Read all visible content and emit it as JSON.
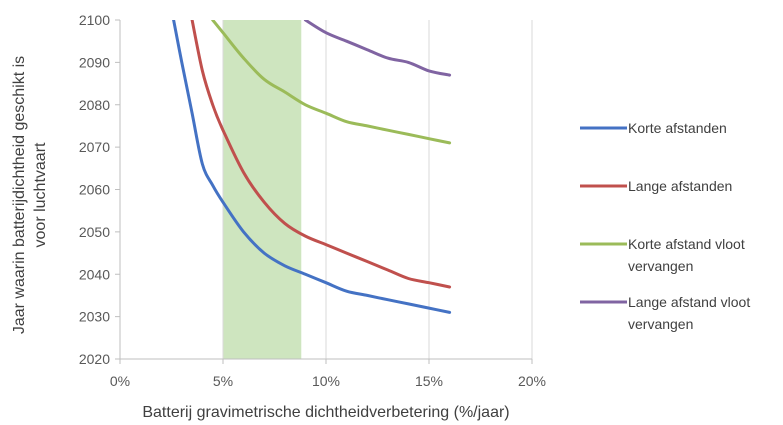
{
  "chart_data": {
    "type": "line",
    "title": "",
    "xlabel": "Batterij gravimetrische dichtheidverbetering (%/jaar)",
    "ylabel_lines": [
      "Jaar waarin batterijdichtheid geschikt is",
      "voor luchtvaart"
    ],
    "xlim": [
      0,
      20
    ],
    "ylim": [
      2020,
      2100
    ],
    "x_ticks": [
      0,
      5,
      10,
      15,
      20
    ],
    "x_tick_labels": [
      "0%",
      "5%",
      "10%",
      "15%",
      "20%"
    ],
    "y_ticks": [
      2020,
      2030,
      2040,
      2050,
      2060,
      2070,
      2080,
      2090,
      2100
    ],
    "y_tick_labels": [
      "2020",
      "2030",
      "2040",
      "2050",
      "2060",
      "2070",
      "2080",
      "2090",
      "2100"
    ],
    "grid": "vertical",
    "shaded_band": {
      "x_from": 5,
      "x_to": 8.8,
      "color": "#c5e0b4"
    },
    "legend_position": "right",
    "series": [
      {
        "name_lines": [
          "Korte afstanden"
        ],
        "color": "#4472c4",
        "x": [
          2.6,
          3.0,
          3.5,
          4.0,
          4.5,
          5.0,
          6.0,
          7.0,
          8.0,
          9.0,
          10.0,
          11.0,
          12.0,
          13.0,
          14.0,
          15.0,
          16.0
        ],
        "y": [
          2100,
          2090,
          2078,
          2066,
          2061,
          2057,
          2050,
          2045,
          2042,
          2040,
          2038,
          2036,
          2035,
          2034,
          2033,
          2032,
          2031
        ]
      },
      {
        "name_lines": [
          "Lange afstanden"
        ],
        "color": "#c0504d",
        "x": [
          3.5,
          4.0,
          4.5,
          5.0,
          6.0,
          7.0,
          8.0,
          9.0,
          10.0,
          11.0,
          12.0,
          13.0,
          14.0,
          15.0,
          16.0
        ],
        "y": [
          2100,
          2088,
          2080,
          2074,
          2064,
          2057,
          2052,
          2049,
          2047,
          2045,
          2043,
          2041,
          2039,
          2038,
          2037
        ]
      },
      {
        "name_lines": [
          "Korte afstand vloot",
          "vervangen"
        ],
        "color": "#9bbb59",
        "x": [
          4.5,
          5.0,
          6.0,
          7.0,
          8.0,
          9.0,
          10.0,
          11.0,
          12.0,
          13.0,
          14.0,
          15.0,
          16.0
        ],
        "y": [
          2100,
          2097,
          2091,
          2086,
          2083,
          2080,
          2078,
          2076,
          2075,
          2074,
          2073,
          2072,
          2071
        ]
      },
      {
        "name_lines": [
          "Lange afstand vloot",
          "vervangen"
        ],
        "color": "#8064a2",
        "x": [
          9.0,
          10.0,
          11.0,
          12.0,
          13.0,
          14.0,
          15.0,
          16.0
        ],
        "y": [
          2100,
          2097,
          2095,
          2093,
          2091,
          2090,
          2088,
          2087
        ]
      }
    ]
  }
}
